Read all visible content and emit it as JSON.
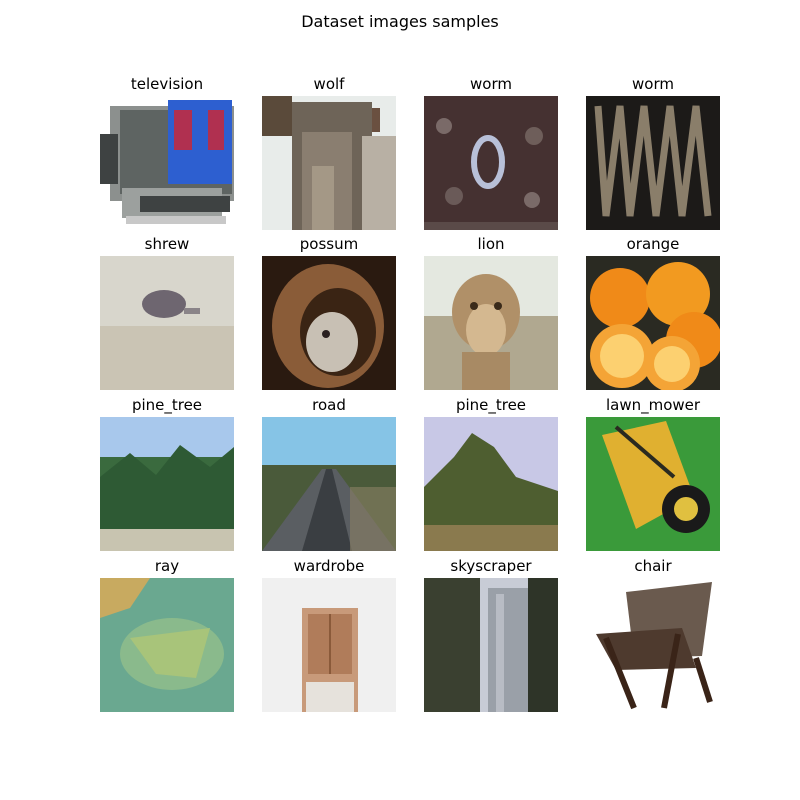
{
  "figure": {
    "title": "Dataset images samples"
  },
  "samples": [
    {
      "label": "television"
    },
    {
      "label": "wolf"
    },
    {
      "label": "worm"
    },
    {
      "label": "worm"
    },
    {
      "label": "shrew"
    },
    {
      "label": "possum"
    },
    {
      "label": "lion"
    },
    {
      "label": "orange"
    },
    {
      "label": "pine_tree"
    },
    {
      "label": "road"
    },
    {
      "label": "pine_tree"
    },
    {
      "label": "lawn_mower"
    },
    {
      "label": "ray"
    },
    {
      "label": "wardrobe"
    },
    {
      "label": "skyscraper"
    },
    {
      "label": "chair"
    }
  ]
}
